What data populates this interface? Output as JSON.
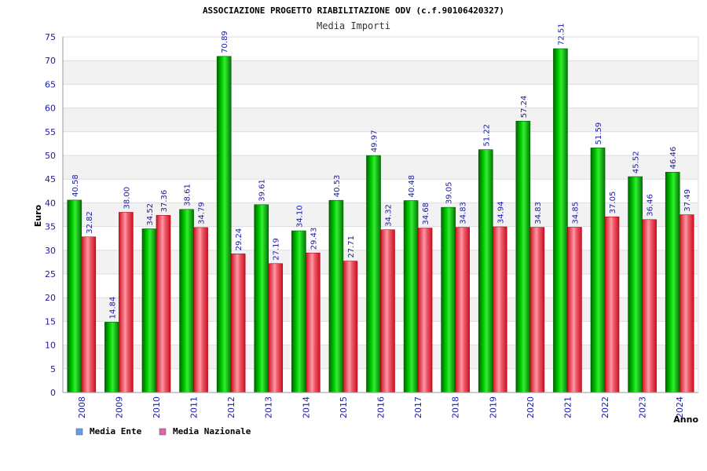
{
  "chart_data": {
    "type": "bar",
    "title": "ASSOCIAZIONE PROGETTO RIABILITAZIONE ODV (c.f.90106420327)",
    "subtitle": "Media Importi",
    "xlabel": "Anno",
    "ylabel": "Euro",
    "ylim": [
      0,
      75
    ],
    "yticks": [
      0,
      5,
      10,
      15,
      20,
      25,
      30,
      35,
      40,
      45,
      50,
      55,
      60,
      65,
      70,
      75
    ],
    "grid": true,
    "legend_position": "bottom-left",
    "categories": [
      "2008",
      "2009",
      "2010",
      "2011",
      "2012",
      "2013",
      "2014",
      "2015",
      "2016",
      "2017",
      "2018",
      "2019",
      "2020",
      "2021",
      "2022",
      "2023",
      "2024"
    ],
    "series": [
      {
        "name": "Media Ente",
        "color": "#00bb00",
        "legend_color": "#6699ee",
        "values": [
          40.58,
          14.84,
          34.52,
          38.61,
          70.89,
          39.61,
          34.1,
          40.53,
          49.97,
          40.48,
          39.05,
          51.22,
          57.24,
          72.51,
          51.59,
          45.52,
          46.46
        ],
        "labels": [
          "40.58",
          "14.84",
          "34.52",
          "38.61",
          "70.89",
          "39.61",
          "34.10",
          "40.53",
          "49.97",
          "40.48",
          "39.05",
          "51.22",
          "57.24",
          "72.51",
          "51.59",
          "45.52",
          "46.46"
        ]
      },
      {
        "name": "Media Nazionale",
        "color": "#dd2233",
        "legend_color": "#dd66aa",
        "values": [
          32.82,
          38.0,
          37.36,
          34.79,
          29.24,
          27.19,
          29.43,
          27.71,
          34.32,
          34.68,
          34.83,
          34.94,
          34.83,
          34.85,
          37.05,
          36.46,
          37.49
        ],
        "labels": [
          "32.82",
          "38.00",
          "37.36",
          "34.79",
          "29.24",
          "27.19",
          "29.43",
          "27.71",
          "34.32",
          "34.68",
          "34.83",
          "34.94",
          "34.83",
          "34.85",
          "37.05",
          "36.46",
          "37.49"
        ]
      }
    ]
  }
}
